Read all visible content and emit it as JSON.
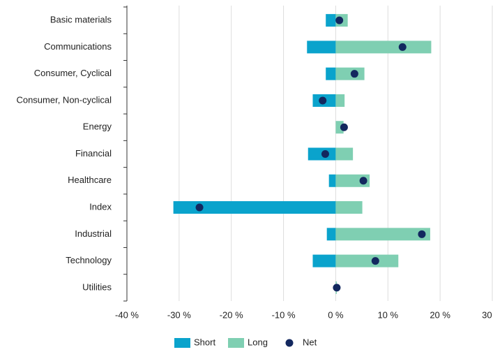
{
  "chart_data": {
    "type": "bar",
    "categories": [
      "Basic materials",
      "Communications",
      "Consumer, Cyclical",
      "Consumer, Non-cyclical",
      "Energy",
      "Financial",
      "Healthcare",
      "Index",
      "Industrial",
      "Technology",
      "Utilities"
    ],
    "series": [
      {
        "name": "Short",
        "color": "#0aa3cc",
        "values": [
          -1.9,
          -5.5,
          -1.9,
          -4.4,
          0,
          -5.3,
          -1.3,
          -31.1,
          -1.7,
          -4.4,
          0
        ]
      },
      {
        "name": "Long",
        "color": "#7fcfb2",
        "values": [
          2.3,
          18.3,
          5.5,
          1.7,
          1.5,
          3.3,
          6.5,
          5.1,
          18.1,
          12.0,
          0.2
        ]
      },
      {
        "name": "Net",
        "color": "#13285f",
        "values": [
          0.7,
          12.8,
          3.6,
          -2.5,
          1.6,
          -2.0,
          5.3,
          -26.1,
          16.5,
          7.6,
          0.2
        ]
      }
    ],
    "xlim": [
      -40,
      30
    ],
    "xticks": [
      {
        "value": -40,
        "label": "-40 %"
      },
      {
        "value": -30,
        "label": "-30 %"
      },
      {
        "value": -20,
        "label": "-20 %"
      },
      {
        "value": -10,
        "label": "-10 %"
      },
      {
        "value": 0,
        "label": "0 %"
      },
      {
        "value": 10,
        "label": "10 %"
      },
      {
        "value": 20,
        "label": "20 %"
      },
      {
        "value": 30,
        "label": "30 %"
      }
    ],
    "grid": true
  }
}
